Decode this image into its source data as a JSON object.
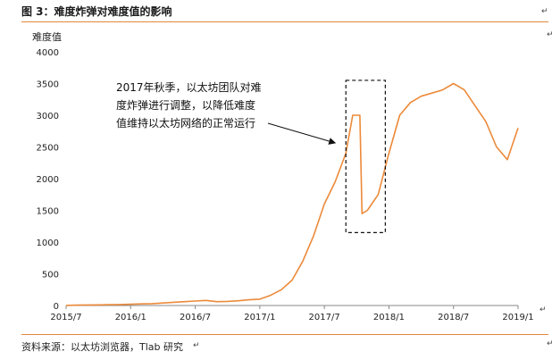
{
  "figure": {
    "title": "图 3：难度炸弹对难度值的影响",
    "source": "资料来源：以太坊浏览器，Tlab 研究",
    "end_marks": [
      "↵",
      "↵",
      "↵",
      "↵",
      "↵"
    ]
  },
  "annotation": {
    "lines": [
      "2017年秋季，以太坊团队对难",
      "度炸弹进行调整，以降低难度",
      "值维持以太坊网络的正常运行"
    ]
  },
  "colors": {
    "series": "#ec8a3a",
    "rule": "#e0893f",
    "axis": "#888888",
    "text": "#222222"
  },
  "chart_data": {
    "type": "line",
    "title": "",
    "xlabel": "",
    "ylabel": "难度值",
    "ylim": [
      0,
      4000
    ],
    "yticks": [
      0,
      500,
      1000,
      1500,
      2000,
      2500,
      3000,
      3500,
      4000
    ],
    "xlim": [
      "2015-07",
      "2019-01"
    ],
    "xtick_labels": [
      "2015/7",
      "2016/1",
      "2016/7",
      "2017/1",
      "2017/7",
      "2018/1",
      "2018/7",
      "2019/1"
    ],
    "grid": false,
    "legend": "none",
    "series": [
      {
        "x": [
          "2015-07",
          "2015-08",
          "2015-09",
          "2015-10",
          "2015-11",
          "2015-12",
          "2016-01",
          "2016-02",
          "2016-03",
          "2016-04",
          "2016-05",
          "2016-06",
          "2016-07",
          "2016-08",
          "2016-09",
          "2016-10",
          "2016-11",
          "2016-12",
          "2017-01",
          "2017-02",
          "2017-03",
          "2017-04",
          "2017-05",
          "2017-06",
          "2017-07",
          "2017-08",
          "2017-09",
          "2017-09-20",
          "2017-10-10",
          "2017-10-16",
          "2017-11",
          "2017-12",
          "2018-01",
          "2018-02",
          "2018-03",
          "2018-04",
          "2018-05",
          "2018-06",
          "2018-07",
          "2018-08",
          "2018-09",
          "2018-10",
          "2018-11",
          "2018-12",
          "2019-01"
        ],
        "values": [
          2,
          5,
          8,
          10,
          13,
          16,
          20,
          25,
          30,
          40,
          50,
          60,
          70,
          80,
          60,
          65,
          75,
          90,
          100,
          160,
          250,
          400,
          700,
          1100,
          1600,
          1950,
          2400,
          3000,
          3000,
          1450,
          1500,
          1750,
          2400,
          3000,
          3200,
          3300,
          3350,
          3400,
          3500,
          3400,
          3150,
          2900,
          2500,
          2300,
          2800
        ]
      }
    ]
  }
}
